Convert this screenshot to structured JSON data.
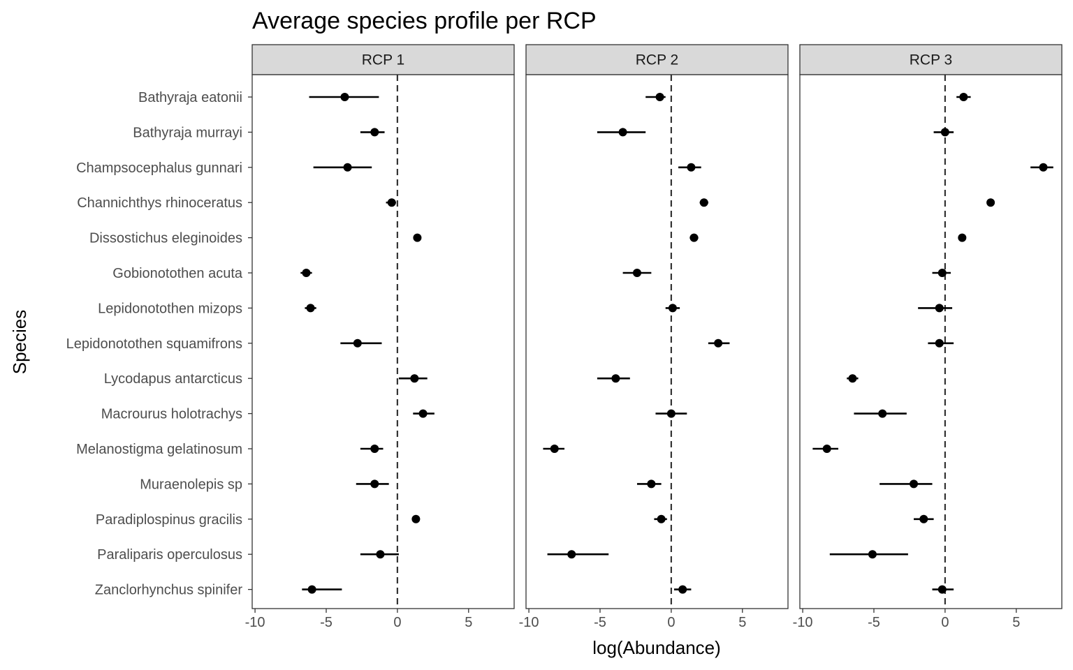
{
  "chart_data": {
    "type": "scatter",
    "subtype": "point-range faceted",
    "title": "Average species profile per RCP",
    "xlabel": "log(Abundance)",
    "ylabel": "Species",
    "xlim": [
      -10.2,
      8.2
    ],
    "xticks": [
      -10,
      -5,
      0,
      5
    ],
    "reference_line": {
      "x": 0,
      "style": "dashed"
    },
    "grid": false,
    "categories": [
      "Bathyraja eatonii",
      "Bathyraja murrayi",
      "Champsocephalus gunnari",
      "Channichthys rhinoceratus",
      "Dissostichus eleginoides",
      "Gobionotothen acuta",
      "Lepidonotothen mizops",
      "Lepidonotothen squamifrons",
      "Lycodapus antarcticus",
      "Macrourus holotrachys",
      "Melanostigma gelatinosum",
      "Muraenolepis sp ",
      "Paradiplospinus gracilis",
      "Paraliparis operculosus",
      "Zanclorhynchus spinifer"
    ],
    "facets": [
      {
        "label": "RCP 1",
        "points": [
          {
            "est": -3.7,
            "lo": -6.2,
            "hi": -1.3
          },
          {
            "est": -1.6,
            "lo": -2.6,
            "hi": -0.9
          },
          {
            "est": -3.5,
            "lo": -5.9,
            "hi": -1.8
          },
          {
            "est": -0.4,
            "lo": -0.8,
            "hi": -0.1
          },
          {
            "est": 1.4,
            "lo": 1.3,
            "hi": 1.5
          },
          {
            "est": -6.4,
            "lo": -6.8,
            "hi": -6.0
          },
          {
            "est": -6.1,
            "lo": -6.5,
            "hi": -5.7
          },
          {
            "est": -2.8,
            "lo": -4.0,
            "hi": -1.1
          },
          {
            "est": 1.2,
            "lo": 0.1,
            "hi": 2.1
          },
          {
            "est": 1.8,
            "lo": 1.1,
            "hi": 2.6
          },
          {
            "est": -1.6,
            "lo": -2.6,
            "hi": -1.0
          },
          {
            "est": -1.6,
            "lo": -2.9,
            "hi": -0.6
          },
          {
            "est": 1.3,
            "lo": 1.2,
            "hi": 1.4
          },
          {
            "est": -1.2,
            "lo": -2.6,
            "hi": 0.1
          },
          {
            "est": -6.0,
            "lo": -6.7,
            "hi": -3.9
          }
        ]
      },
      {
        "label": "RCP 2",
        "points": [
          {
            "est": -0.8,
            "lo": -1.8,
            "hi": -0.4
          },
          {
            "est": -3.4,
            "lo": -5.2,
            "hi": -1.8
          },
          {
            "est": 1.4,
            "lo": 0.5,
            "hi": 2.1
          },
          {
            "est": 2.3,
            "lo": 2.0,
            "hi": 2.6
          },
          {
            "est": 1.6,
            "lo": 1.3,
            "hi": 1.9
          },
          {
            "est": -2.4,
            "lo": -3.4,
            "hi": -1.4
          },
          {
            "est": 0.1,
            "lo": -0.4,
            "hi": 0.6
          },
          {
            "est": 3.3,
            "lo": 2.6,
            "hi": 4.1
          },
          {
            "est": -3.9,
            "lo": -5.2,
            "hi": -2.9
          },
          {
            "est": 0.0,
            "lo": -1.1,
            "hi": 1.1
          },
          {
            "est": -8.2,
            "lo": -9.0,
            "hi": -7.5
          },
          {
            "est": -1.4,
            "lo": -2.4,
            "hi": -0.7
          },
          {
            "est": -0.7,
            "lo": -1.2,
            "hi": -0.3
          },
          {
            "est": -7.0,
            "lo": -8.7,
            "hi": -4.4
          },
          {
            "est": 0.8,
            "lo": 0.2,
            "hi": 1.4
          }
        ]
      },
      {
        "label": "RCP 3",
        "points": [
          {
            "est": 1.3,
            "lo": 0.8,
            "hi": 1.8
          },
          {
            "est": 0.0,
            "lo": -0.8,
            "hi": 0.6
          },
          {
            "est": 6.9,
            "lo": 6.0,
            "hi": 7.6
          },
          {
            "est": 3.2,
            "lo": 3.0,
            "hi": 3.4
          },
          {
            "est": 1.2,
            "lo": 1.0,
            "hi": 1.4
          },
          {
            "est": -0.2,
            "lo": -0.9,
            "hi": 0.4
          },
          {
            "est": -0.4,
            "lo": -1.9,
            "hi": 0.5
          },
          {
            "est": -0.4,
            "lo": -1.2,
            "hi": 0.6
          },
          {
            "est": -6.5,
            "lo": -6.9,
            "hi": -6.1
          },
          {
            "est": -4.4,
            "lo": -6.4,
            "hi": -2.7
          },
          {
            "est": -8.3,
            "lo": -9.3,
            "hi": -7.5
          },
          {
            "est": -2.2,
            "lo": -4.6,
            "hi": -0.9
          },
          {
            "est": -1.5,
            "lo": -2.2,
            "hi": -0.8
          },
          {
            "est": -5.1,
            "lo": -8.1,
            "hi": -2.6
          },
          {
            "est": -0.2,
            "lo": -0.9,
            "hi": 0.6
          }
        ]
      }
    ]
  }
}
